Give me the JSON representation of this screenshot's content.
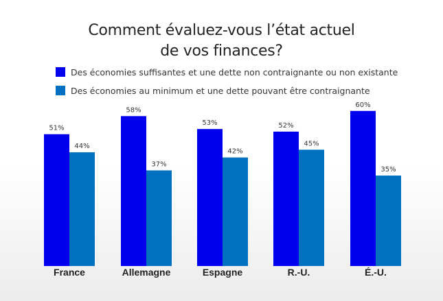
{
  "chart_data": {
    "type": "bar",
    "title_lines": [
      "Comment évaluez-vous l’état actuel",
      "de vos finances?"
    ],
    "categories": [
      "France",
      "Allemagne",
      "Espagne",
      "R.-U.",
      "É.-U."
    ],
    "series": [
      {
        "name": "Des économies suffisantes et une dette non contraignante ou non existante",
        "color": "#0000ee",
        "values": [
          51,
          58,
          53,
          52,
          60
        ]
      },
      {
        "name": "Des économies au minimum et une dette pouvant être contraignante",
        "color": "#0070c0",
        "values": [
          44,
          37,
          42,
          45,
          35
        ]
      }
    ],
    "value_suffix": "%",
    "ylim": [
      0,
      60
    ],
    "grid": false,
    "legend_position": "top-left"
  }
}
